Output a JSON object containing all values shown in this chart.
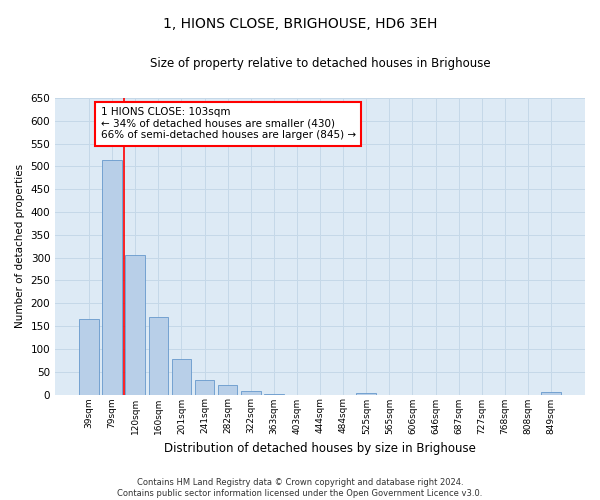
{
  "title": "1, HIONS CLOSE, BRIGHOUSE, HD6 3EH",
  "subtitle": "Size of property relative to detached houses in Brighouse",
  "xlabel": "Distribution of detached houses by size in Brighouse",
  "ylabel": "Number of detached properties",
  "categories": [
    "39sqm",
    "79sqm",
    "120sqm",
    "160sqm",
    "201sqm",
    "241sqm",
    "282sqm",
    "322sqm",
    "363sqm",
    "403sqm",
    "444sqm",
    "484sqm",
    "525sqm",
    "565sqm",
    "606sqm",
    "646sqm",
    "687sqm",
    "727sqm",
    "768sqm",
    "808sqm",
    "849sqm"
  ],
  "values": [
    165,
    515,
    305,
    170,
    77,
    32,
    20,
    7,
    1,
    0,
    0,
    0,
    3,
    0,
    0,
    0,
    0,
    0,
    0,
    0,
    5
  ],
  "bar_color": "#b8cfe8",
  "bar_edge_color": "#6699cc",
  "grid_color": "#c5d8e8",
  "background_color": "#ddeaf5",
  "vline_color": "red",
  "annotation_text": "1 HIONS CLOSE: 103sqm\n← 34% of detached houses are smaller (430)\n66% of semi-detached houses are larger (845) →",
  "annotation_box_color": "white",
  "annotation_box_edge": "red",
  "ylim": [
    0,
    650
  ],
  "yticks": [
    0,
    50,
    100,
    150,
    200,
    250,
    300,
    350,
    400,
    450,
    500,
    550,
    600,
    650
  ],
  "footer_line1": "Contains HM Land Registry data © Crown copyright and database right 2024.",
  "footer_line2": "Contains public sector information licensed under the Open Government Licence v3.0."
}
